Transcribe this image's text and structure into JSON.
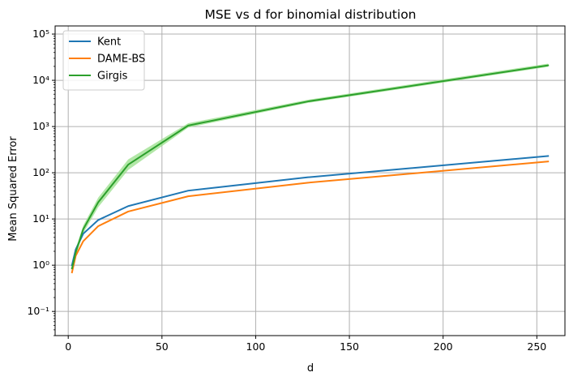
{
  "chart_data": {
    "type": "line",
    "title": "MSE vs d for binomial distribution",
    "xlabel": "d",
    "ylabel": "Mean Squared Error",
    "xlim": [
      -7,
      265
    ],
    "xticks": [
      0,
      50,
      100,
      150,
      200,
      250
    ],
    "yscale": "log",
    "ylim": [
      0.03,
      150000
    ],
    "yticks": [
      {
        "value": 0.1,
        "label": "10⁻¹"
      },
      {
        "value": 1,
        "label": "10⁰"
      },
      {
        "value": 10,
        "label": "10¹"
      },
      {
        "value": 100,
        "label": "10²"
      },
      {
        "value": 1000,
        "label": "10³"
      },
      {
        "value": 10000,
        "label": "10⁴"
      },
      {
        "value": 100000,
        "label": "10⁵"
      }
    ],
    "grid": true,
    "legend_position": "top-left",
    "x": [
      2,
      4,
      8,
      16,
      32,
      64,
      128,
      256
    ],
    "series": [
      {
        "name": "Kent",
        "color": "#1f77b4",
        "values": [
          1.0,
          2.2,
          4.8,
          9.5,
          19,
          41,
          80,
          230
        ],
        "lower": [
          0.95,
          2.1,
          4.6,
          9.1,
          18.4,
          40,
          78,
          225
        ],
        "upper": [
          1.05,
          2.3,
          5.0,
          9.9,
          19.6,
          42,
          82,
          235
        ]
      },
      {
        "name": "DAME-BS",
        "color": "#ff7f0e",
        "values": [
          0.7,
          1.6,
          3.3,
          7.0,
          14.5,
          31,
          61,
          175
        ],
        "lower": [
          0.67,
          1.55,
          3.2,
          6.8,
          14.1,
          30.2,
          59.5,
          171
        ],
        "upper": [
          0.73,
          1.65,
          3.4,
          7.2,
          14.9,
          31.8,
          62.5,
          179
        ]
      },
      {
        "name": "Girgis",
        "color": "#2ca02c",
        "band_color": "#98df8a",
        "values": [
          0.85,
          1.9,
          6.0,
          23,
          150,
          1050,
          3500,
          21000
        ],
        "lower": [
          0.75,
          1.6,
          4.9,
          18,
          115,
          950,
          3250,
          19500
        ],
        "upper": [
          0.98,
          2.3,
          7.2,
          29,
          195,
          1180,
          3800,
          23000
        ]
      }
    ]
  }
}
